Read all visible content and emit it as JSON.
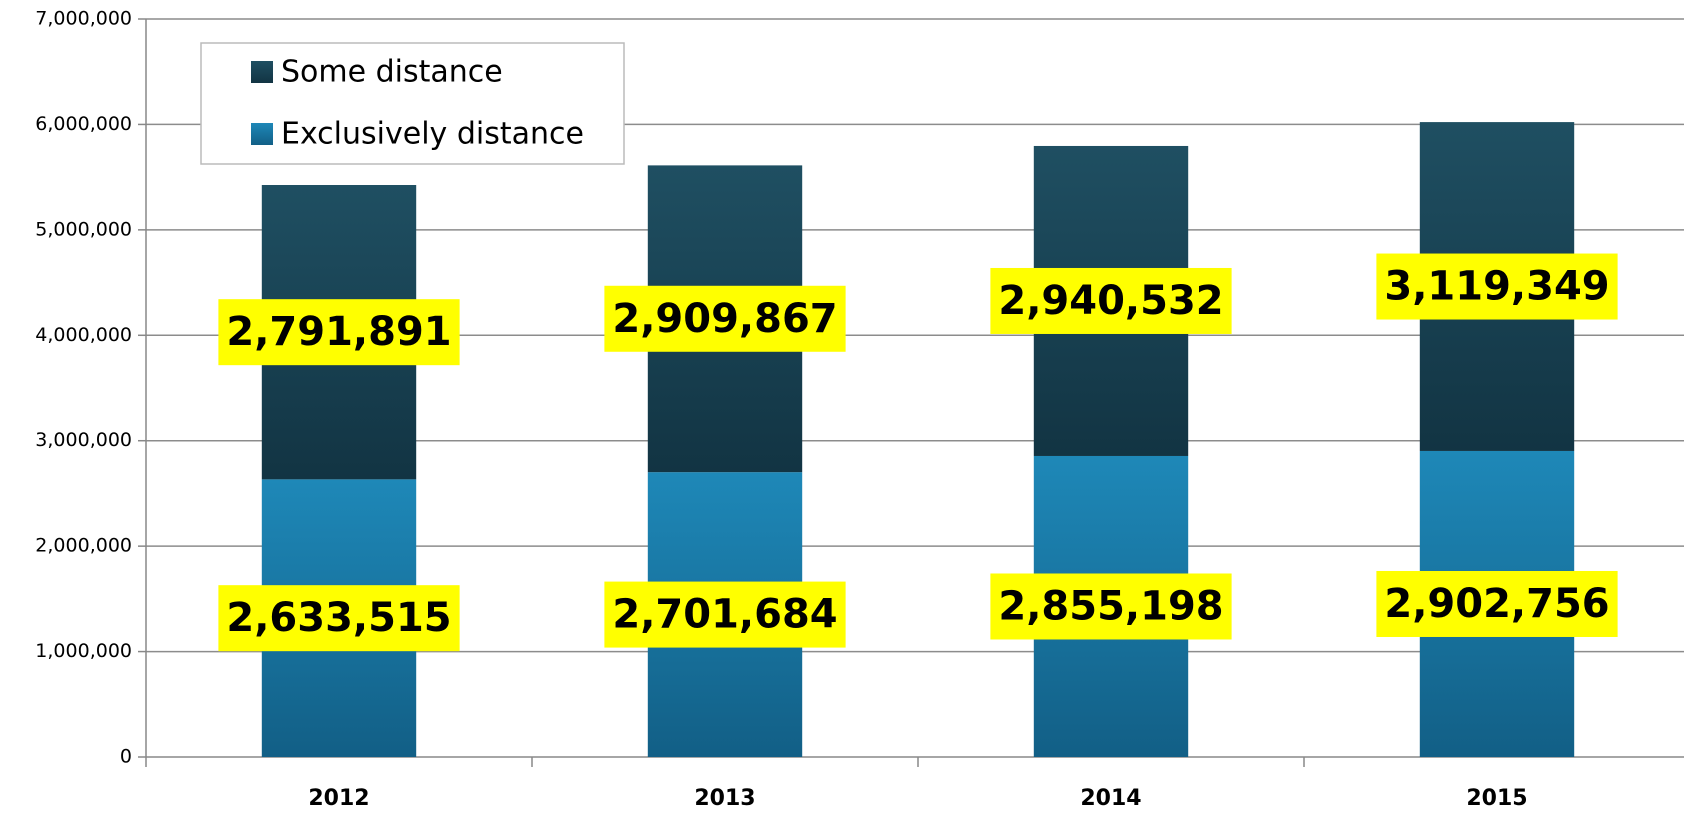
{
  "chart_data": {
    "type": "stacked_bar",
    "categories": [
      "2012",
      "2013",
      "2014",
      "2015"
    ],
    "series": [
      {
        "name": "Exclusively distance",
        "color": "#1b7fae",
        "values": [
          2633515,
          2701684,
          2855198,
          2902756
        ],
        "value_labels": [
          "2,633,515",
          "2,701,684",
          "2,855,198",
          "2,902,756"
        ]
      },
      {
        "name": "Some distance",
        "color": "#1b4455",
        "values": [
          2791891,
          2909867,
          2940532,
          3119349
        ],
        "value_labels": [
          "2,791,891",
          "2,909,867",
          "2,940,532",
          "3,119,349"
        ]
      }
    ],
    "ylim": [
      0,
      7000000
    ],
    "yticks": [
      0,
      {
        "value": 1000000,
        "label": "1,000,000"
      },
      {
        "value": 2000000,
        "label": "2,000,000"
      },
      {
        "value": 3000000,
        "label": "3,000,000"
      },
      {
        "value": 4000000,
        "label": "4,000,000"
      },
      {
        "value": 5000000,
        "label": "5,000,000"
      },
      {
        "value": 6000000,
        "label": "6,000,000"
      },
      {
        "value": 7000000,
        "label": "7,000,000"
      }
    ],
    "grid": true,
    "legend": "upper left",
    "label_background": "#ffff00"
  }
}
